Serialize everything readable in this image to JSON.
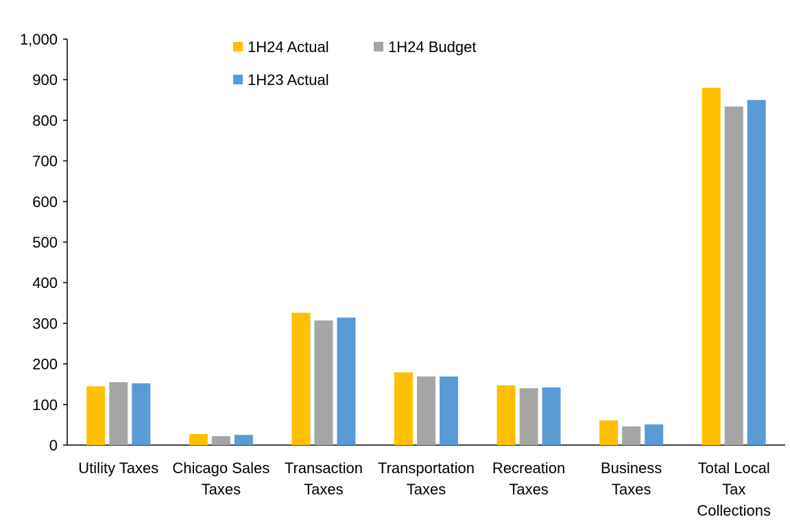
{
  "chart_data": {
    "type": "bar",
    "title": "",
    "xlabel": "",
    "ylabel": "",
    "ylim": [
      0,
      1000
    ],
    "yticks": [
      0,
      100,
      200,
      300,
      400,
      500,
      600,
      700,
      800,
      900,
      1000
    ],
    "ytick_labels": [
      "0",
      "100",
      "200",
      "300",
      "400",
      "500",
      "600",
      "700",
      "800",
      "900",
      "1,000"
    ],
    "grid": false,
    "legend_position": "top-center",
    "categories": [
      [
        "Utility Taxes"
      ],
      [
        "Chicago Sales",
        "Taxes"
      ],
      [
        "Transaction",
        "Taxes"
      ],
      [
        "Transportation",
        "Taxes"
      ],
      [
        "Recreation",
        "Taxes"
      ],
      [
        "Business",
        "Taxes"
      ],
      [
        "Total Local",
        "Tax",
        "Collections"
      ]
    ],
    "series": [
      {
        "name": "1H24 Actual",
        "color": "#FFC000",
        "values": [
          145,
          27,
          326,
          179,
          147,
          61,
          880
        ]
      },
      {
        "name": "1H24 Budget",
        "color": "#A5A5A5",
        "values": [
          155,
          22,
          307,
          169,
          140,
          46,
          834
        ]
      },
      {
        "name": "1H23 Actual",
        "color": "#5B9BD5",
        "values": [
          152,
          25,
          314,
          169,
          142,
          51,
          850
        ]
      }
    ]
  }
}
